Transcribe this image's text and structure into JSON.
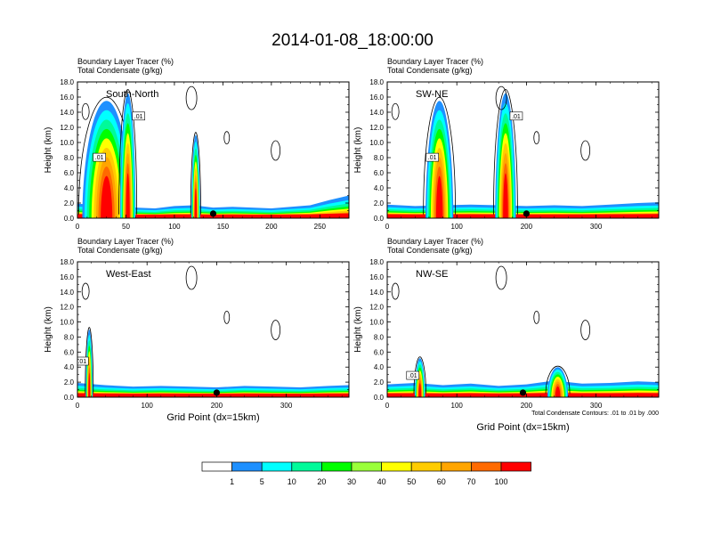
{
  "title": "2014-01-08_18:00:00",
  "colors": {
    "levels": [
      "#ffffff",
      "#1e90ff",
      "#00ffff",
      "#00fa9a",
      "#00ff00",
      "#9aff3a",
      "#ffff00",
      "#ffcc00",
      "#ffa500",
      "#ff6a00",
      "#ff0000"
    ],
    "contour": "#000000"
  },
  "chart_data": [
    {
      "type": "heatmap",
      "field_label": "Boundary Layer Tracer   (%)",
      "contour_label": "Total Condensate   (g/kg)",
      "section": "South-North",
      "ylabel": "Height (km)",
      "xlabel": "",
      "xlim": [
        0,
        280
      ],
      "ylim": [
        0,
        18
      ],
      "xticks": [
        "0",
        "50",
        "100",
        "150",
        "200",
        "250"
      ],
      "yticks": [
        "0.0",
        "2.0",
        "4.0",
        "6.0",
        "8.0",
        "10.0",
        "12.0",
        "14.0",
        "16.0",
        "18.0"
      ],
      "contour_labels": [
        ".01",
        ".01"
      ],
      "marker_x": 140,
      "columns": [
        {
          "x0": 5,
          "x1": 55,
          "top": 15.5,
          "peak": 30
        },
        {
          "x0": 44,
          "x1": 60,
          "top": 16.5,
          "peak": 52
        },
        {
          "x0": 118,
          "x1": 127,
          "top": 11.0,
          "peak": 122
        }
      ],
      "surface": [
        [
          0,
          1.9
        ],
        [
          20,
          1.8
        ],
        [
          40,
          1.6
        ],
        [
          60,
          1.4
        ],
        [
          80,
          1.3
        ],
        [
          100,
          1.6
        ],
        [
          120,
          1.7
        ],
        [
          140,
          1.4
        ],
        [
          160,
          1.5
        ],
        [
          180,
          1.4
        ],
        [
          200,
          1.3
        ],
        [
          220,
          1.5
        ],
        [
          240,
          1.7
        ],
        [
          260,
          2.4
        ],
        [
          280,
          3.0
        ]
      ]
    },
    {
      "type": "heatmap",
      "field_label": "Boundary Layer Tracer   (%)",
      "contour_label": "Total Condensate   (g/kg)",
      "section": "SW-NE",
      "ylabel": "Height (km)",
      "xlabel": "",
      "xlim": [
        0,
        390
      ],
      "ylim": [
        0,
        18
      ],
      "xticks": [
        "0",
        "100",
        "200",
        "300"
      ],
      "yticks": [
        "0.0",
        "2.0",
        "4.0",
        "6.0",
        "8.0",
        "10.0",
        "12.0",
        "14.0",
        "16.0",
        "18.0"
      ],
      "contour_labels": [
        ".01",
        ".01"
      ],
      "marker_x": 200,
      "columns": [
        {
          "x0": 55,
          "x1": 95,
          "top": 15.5,
          "peak": 75
        },
        {
          "x0": 155,
          "x1": 185,
          "top": 16.5,
          "peak": 170
        }
      ],
      "surface": [
        [
          0,
          1.8
        ],
        [
          40,
          1.6
        ],
        [
          80,
          1.7
        ],
        [
          120,
          1.8
        ],
        [
          160,
          1.7
        ],
        [
          200,
          1.6
        ],
        [
          240,
          1.7
        ],
        [
          280,
          1.6
        ],
        [
          320,
          1.8
        ],
        [
          360,
          2.0
        ],
        [
          390,
          2.1
        ]
      ]
    },
    {
      "type": "heatmap",
      "field_label": "Boundary Layer Tracer   (%)",
      "contour_label": "Total Condensate   (g/kg)",
      "section": "West-East",
      "ylabel": "Height (km)",
      "xlabel": "Grid Point (dx=15km)",
      "xlim": [
        0,
        390
      ],
      "ylim": [
        0,
        18
      ],
      "xticks": [
        "0",
        "100",
        "200",
        "300"
      ],
      "yticks": [
        "0.0",
        "2.0",
        "4.0",
        "6.0",
        "8.0",
        "10.0",
        "12.0",
        "14.0",
        "16.0",
        "18.0"
      ],
      "contour_labels": [
        ".01"
      ],
      "marker_x": 200,
      "columns": [
        {
          "x0": 12,
          "x1": 22,
          "top": 9.0,
          "peak": 17
        }
      ],
      "surface": [
        [
          0,
          1.9
        ],
        [
          40,
          1.6
        ],
        [
          80,
          1.4
        ],
        [
          120,
          1.5
        ],
        [
          160,
          1.4
        ],
        [
          200,
          1.3
        ],
        [
          240,
          1.5
        ],
        [
          280,
          1.4
        ],
        [
          320,
          1.3
        ],
        [
          360,
          1.5
        ],
        [
          390,
          1.6
        ]
      ]
    },
    {
      "type": "heatmap",
      "field_label": "Boundary Layer Tracer   (%)",
      "contour_label": "Total Condensate   (g/kg)",
      "section": "NW-SE",
      "ylabel": "Height (km)",
      "xlabel": "Grid Point (dx=15km)",
      "xlim": [
        0,
        390
      ],
      "ylim": [
        0,
        18
      ],
      "xticks": [
        "0",
        "100",
        "200",
        "300"
      ],
      "yticks": [
        "0.0",
        "2.0",
        "4.0",
        "6.0",
        "8.0",
        "10.0",
        "12.0",
        "14.0",
        "16.0",
        "18.0"
      ],
      "contour_labels": [
        ".01"
      ],
      "contour_info": "Total Condensate Contours: .01 to .01 by .000",
      "marker_x": 195,
      "columns": [
        {
          "x0": 40,
          "x1": 55,
          "top": 5.2,
          "peak": 47
        },
        {
          "x0": 230,
          "x1": 260,
          "top": 4.0,
          "peak": 245
        }
      ],
      "surface": [
        [
          0,
          1.7
        ],
        [
          40,
          1.9
        ],
        [
          80,
          1.6
        ],
        [
          120,
          1.8
        ],
        [
          160,
          1.5
        ],
        [
          200,
          1.7
        ],
        [
          240,
          2.2
        ],
        [
          280,
          1.8
        ],
        [
          320,
          1.9
        ],
        [
          360,
          2.1
        ],
        [
          390,
          2.0
        ]
      ]
    }
  ],
  "colorbar": {
    "labels": [
      "1",
      "5",
      "10",
      "20",
      "30",
      "40",
      "50",
      "60",
      "70",
      "100"
    ]
  }
}
